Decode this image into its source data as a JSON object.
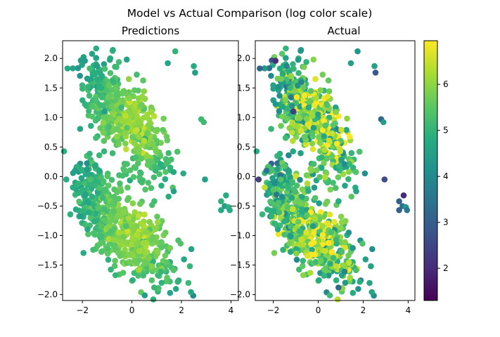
{
  "chart_data": {
    "type": "scatter",
    "suptitle": "Model vs Actual Comparison (log color scale)",
    "colormap": "viridis",
    "color_range": [
      1.3,
      6.95
    ],
    "colorbar_ticks": [
      2,
      3,
      4,
      5,
      6
    ],
    "colorbar_tick_labels": [
      "2",
      "3",
      "4",
      "5",
      "6"
    ],
    "xlim": [
      -2.8,
      4.3
    ],
    "ylim": [
      -2.1,
      2.3
    ],
    "x_ticks": [
      -2,
      0,
      2,
      4
    ],
    "x_tick_labels": [
      "−2",
      "0",
      "2",
      "4"
    ],
    "y_ticks": [
      -2.0,
      -1.5,
      -1.0,
      -0.5,
      0.0,
      0.5,
      1.0,
      1.5,
      2.0
    ],
    "y_tick_labels": [
      "−2.0",
      "−1.5",
      "−1.0",
      "−0.5",
      "0.0",
      "0.5",
      "1.0",
      "1.5",
      "2.0"
    ],
    "cluster_generator": {
      "seed": 20240611,
      "clusters": [
        {
          "cx": -1.2,
          "cy": 1.35,
          "sx": 0.45,
          "sy": 0.35,
          "n": 170,
          "rot": -0.5
        },
        {
          "cx": 0.2,
          "cy": 0.85,
          "sx": 0.8,
          "sy": 0.3,
          "n": 320,
          "rot": -0.45
        },
        {
          "cx": -1.3,
          "cy": -0.55,
          "sx": 0.6,
          "sy": 0.3,
          "n": 260,
          "rot": -0.6
        },
        {
          "cx": 0.3,
          "cy": -1.15,
          "sx": 0.8,
          "sy": 0.28,
          "n": 330,
          "rot": -0.3
        },
        {
          "cx": 0.1,
          "cy": 0.0,
          "sx": 0.8,
          "sy": 0.2,
          "n": 45,
          "rot": 0
        }
      ],
      "outliers": [
        {
          "x": -2.6,
          "y": 1.83
        },
        {
          "x": -1.9,
          "y": 1.96
        },
        {
          "x": 1.75,
          "y": 2.12
        },
        {
          "x": 1.45,
          "y": 1.92
        },
        {
          "x": 2.5,
          "y": 1.87
        },
        {
          "x": 2.55,
          "y": 1.76
        },
        {
          "x": 2.8,
          "y": 0.97
        },
        {
          "x": 2.9,
          "y": 0.92
        },
        {
          "x": 2.95,
          "y": -0.05
        },
        {
          "x": 3.8,
          "y": -0.32
        },
        {
          "x": 3.6,
          "y": -0.42
        },
        {
          "x": 3.75,
          "y": -0.5
        },
        {
          "x": 3.9,
          "y": -0.52
        },
        {
          "x": 3.95,
          "y": -0.57
        },
        {
          "x": 3.6,
          "y": -0.57
        },
        {
          "x": -2.65,
          "y": -0.05
        },
        {
          "x": -2.3,
          "y": 0.1
        },
        {
          "x": 2.4,
          "y": -1.23
        },
        {
          "x": 0.9,
          "y": -1.88
        },
        {
          "x": 1.2,
          "y": -1.8
        }
      ]
    },
    "panels": [
      {
        "title": "Predictions",
        "color_model": "smooth"
      },
      {
        "title": "Actual",
        "color_model": "noisy"
      }
    ]
  }
}
